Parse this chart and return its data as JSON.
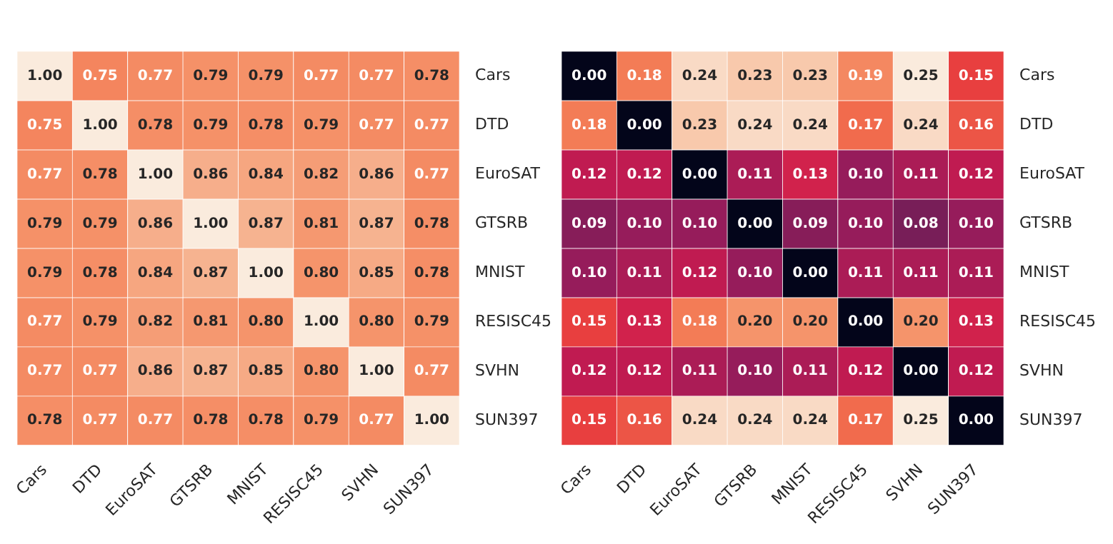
{
  "chart_data": [
    {
      "type": "heatmap",
      "categories": [
        "Cars",
        "DTD",
        "EuroSAT",
        "GTSRB",
        "MNIST",
        "RESISC45",
        "SVHN",
        "SUN397"
      ],
      "y_categories": [
        "Cars",
        "DTD",
        "EuroSAT",
        "GTSRB",
        "MNIST",
        "RESISC45",
        "SVHN",
        "SUN397"
      ],
      "data_labels": true,
      "cells": [
        [
          1.0,
          0.75,
          0.77,
          0.79,
          0.79,
          0.77,
          0.77,
          0.78
        ],
        [
          0.75,
          1.0,
          0.78,
          0.79,
          0.78,
          0.79,
          0.77,
          0.77
        ],
        [
          0.77,
          0.78,
          1.0,
          0.86,
          0.84,
          0.82,
          0.86,
          0.77
        ],
        [
          0.79,
          0.79,
          0.86,
          1.0,
          0.87,
          0.81,
          0.87,
          0.78
        ],
        [
          0.79,
          0.78,
          0.84,
          0.87,
          1.0,
          0.8,
          0.85,
          0.78
        ],
        [
          0.77,
          0.79,
          0.82,
          0.81,
          0.8,
          1.0,
          0.8,
          0.79
        ],
        [
          0.77,
          0.77,
          0.86,
          0.87,
          0.85,
          0.8,
          1.0,
          0.77
        ],
        [
          0.78,
          0.77,
          0.77,
          0.78,
          0.78,
          0.79,
          0.77,
          1.0
        ]
      ],
      "cell_labels": [
        [
          "1.00",
          "0.75",
          "0.77",
          "0.79",
          "0.79",
          "0.77",
          "0.77",
          "0.78"
        ],
        [
          "0.75",
          "1.00",
          "0.78",
          "0.79",
          "0.78",
          "0.79",
          "0.77",
          "0.77"
        ],
        [
          "0.77",
          "0.78",
          "1.00",
          "0.86",
          "0.84",
          "0.82",
          "0.86",
          "0.77"
        ],
        [
          "0.79",
          "0.79",
          "0.86",
          "1.00",
          "0.87",
          "0.81",
          "0.87",
          "0.78"
        ],
        [
          "0.79",
          "0.78",
          "0.84",
          "0.87",
          "1.00",
          "0.80",
          "0.85",
          "0.78"
        ],
        [
          "0.77",
          "0.79",
          "0.82",
          "0.81",
          "0.80",
          "1.00",
          "0.80",
          "0.79"
        ],
        [
          "0.77",
          "0.77",
          "0.86",
          "0.87",
          "0.85",
          "0.80",
          "1.00",
          "0.77"
        ],
        [
          "0.78",
          "0.77",
          "0.77",
          "0.78",
          "0.78",
          "0.79",
          "0.77",
          "1.00"
        ]
      ]
    },
    {
      "type": "heatmap",
      "categories": [
        "Cars",
        "DTD",
        "EuroSAT",
        "GTSRB",
        "MNIST",
        "RESISC45",
        "SVHN",
        "SUN397"
      ],
      "y_categories": [
        "Cars",
        "DTD",
        "EuroSAT",
        "GTSRB",
        "MNIST",
        "RESISC45",
        "SVHN",
        "SUN397"
      ],
      "data_labels": true,
      "cells": [
        [
          0.0,
          0.18,
          0.24,
          0.23,
          0.23,
          0.19,
          0.25,
          0.15
        ],
        [
          0.18,
          0.0,
          0.23,
          0.24,
          0.24,
          0.17,
          0.24,
          0.16
        ],
        [
          0.12,
          0.12,
          0.0,
          0.11,
          0.13,
          0.1,
          0.11,
          0.12
        ],
        [
          0.09,
          0.1,
          0.1,
          0.0,
          0.09,
          0.1,
          0.08,
          0.1
        ],
        [
          0.1,
          0.11,
          0.12,
          0.1,
          0.0,
          0.11,
          0.11,
          0.11
        ],
        [
          0.15,
          0.13,
          0.18,
          0.2,
          0.2,
          0.0,
          0.2,
          0.13
        ],
        [
          0.12,
          0.12,
          0.11,
          0.1,
          0.11,
          0.12,
          0.0,
          0.12
        ],
        [
          0.15,
          0.16,
          0.24,
          0.24,
          0.24,
          0.17,
          0.25,
          0.0
        ]
      ],
      "cell_labels": [
        [
          "0.00",
          "0.18",
          "0.24",
          "0.23",
          "0.23",
          "0.19",
          "0.25",
          "0.15"
        ],
        [
          "0.18",
          "0.00",
          "0.23",
          "0.24",
          "0.24",
          "0.17",
          "0.24",
          "0.16"
        ],
        [
          "0.12",
          "0.12",
          "0.00",
          "0.11",
          "0.13",
          "0.10",
          "0.11",
          "0.12"
        ],
        [
          "0.09",
          "0.10",
          "0.10",
          "0.00",
          "0.09",
          "0.10",
          "0.08",
          "0.10"
        ],
        [
          "0.10",
          "0.11",
          "0.12",
          "0.10",
          "0.00",
          "0.11",
          "0.11",
          "0.11"
        ],
        [
          "0.15",
          "0.13",
          "0.18",
          "0.20",
          "0.20",
          "0.00",
          "0.20",
          "0.13"
        ],
        [
          "0.12",
          "0.12",
          "0.11",
          "0.10",
          "0.11",
          "0.12",
          "0.00",
          "0.12"
        ],
        [
          "0.15",
          "0.16",
          "0.24",
          "0.24",
          "0.24",
          "0.17",
          "0.25",
          "0.00"
        ]
      ]
    }
  ]
}
